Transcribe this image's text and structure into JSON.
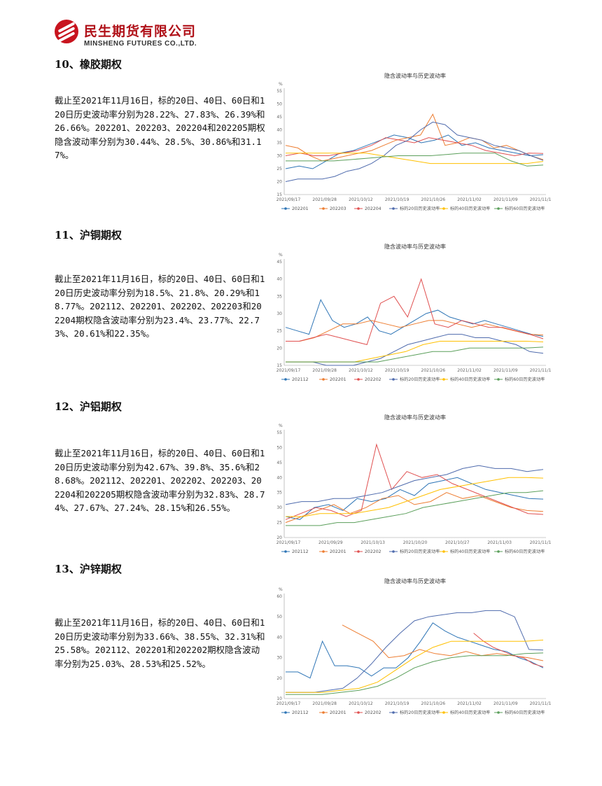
{
  "header": {
    "company_cn": "民生期货有限公司",
    "company_en": "MINSHENG FUTURES CO.,LTD."
  },
  "sections": [
    {
      "title": "10、橡胶期权",
      "text": "截止至2021年11月16日，标的20日、40日、60日和120日历史波动率分别为28.22%、27.83%、26.39%和26.66%。202201、202203、202204和202205期权隐含波动率分别为30.44%、28.5%、30.86%和31.17%。",
      "chart": {
        "title": "隐含波动率与历史波动率",
        "yunit": "%",
        "ylim": [
          15,
          55
        ],
        "yticks": [
          "55",
          "50",
          "45",
          "40",
          "35",
          "30",
          "25",
          "20",
          "15"
        ],
        "xticks": [
          "2021/09/17",
          "2021/09/28",
          "2021/10/12",
          "2021/10/19",
          "2021/10/26",
          "2021/11/02",
          "2021/11/09",
          "2021/11/16"
        ],
        "legend": [
          "202201",
          "202203",
          "202204",
          "标的20日历史波动率",
          "标的40日历史波动率",
          "标的60日历史波动率"
        ],
        "colors": [
          "#2e75b6",
          "#ed7d31",
          "#e05050",
          "#4f6bad",
          "#ffc000",
          "#5b9f5b"
        ]
      }
    },
    {
      "title": "11、沪铜期权",
      "text": "截止至2021年11月16日，标的20日、40日、60日和120日历史波动率分别为18.5%、21.8%、20.29%和18.77%。202112、202201、202202、202203和202204期权隐含波动率分别为23.4%、23.77%、22.73%、20.61%和22.35%。",
      "chart": {
        "title": "隐含波动率与历史波动率",
        "yunit": "%",
        "ylim": [
          15,
          45
        ],
        "yticks": [
          "45",
          "40",
          "35",
          "30",
          "25",
          "20",
          "15"
        ],
        "xticks": [
          "2021/09/17",
          "2021/09/28",
          "2021/10/12",
          "2021/10/19",
          "2021/10/26",
          "2021/11/02",
          "2021/11/09",
          "2021/11/16"
        ],
        "legend": [
          "202112",
          "202201",
          "202202",
          "标的20日历史波动率",
          "标的40日历史波动率",
          "标的60日历史波动率"
        ],
        "colors": [
          "#2e75b6",
          "#ed7d31",
          "#e05050",
          "#4f6bad",
          "#ffc000",
          "#5b9f5b"
        ]
      }
    },
    {
      "title": "12、沪铝期权",
      "text": "截止至2021年11月16日，标的20日、40日、60日和120日历史波动率分别为42.67%、39.8%、35.6%和28.68%。202112、202201、202202、202203、202204和202205期权隐含波动率分别为32.83%、28.74%、27.67%、27.24%、28.15%和26.55%。",
      "chart": {
        "title": "隐含波动率与历史波动率",
        "yunit": "%",
        "ylim": [
          20,
          55
        ],
        "yticks": [
          "55",
          "50",
          "45",
          "40",
          "35",
          "30",
          "25",
          "20"
        ],
        "xticks": [
          "2021/09/17",
          "2021/09/29",
          "2021/10/13",
          "2021/10/20",
          "2021/10/27",
          "2021/11/03",
          "2021/11/10"
        ],
        "legend": [
          "202112",
          "202201",
          "202202",
          "标的20日历史波动率",
          "标的40日历史波动率",
          "标的60日历史波动率"
        ],
        "colors": [
          "#2e75b6",
          "#ed7d31",
          "#e05050",
          "#4f6bad",
          "#ffc000",
          "#5b9f5b"
        ]
      }
    },
    {
      "title": "13、沪锌期权",
      "text": "截止至2021年11月16日，标的20日、40日、60日和120日历史波动率分别为33.66%、38.55%、32.31%和25.58%。202112、202201和202202期权隐含波动率分别为25.03%、28.53%和25.52%。",
      "chart": {
        "title": "隐含波动率与历史波动率",
        "yunit": "%",
        "ylim": [
          10,
          60
        ],
        "yticks": [
          "60",
          "50",
          "40",
          "30",
          "20",
          "10"
        ],
        "xticks": [
          "2021/09/17",
          "2021/09/28",
          "2021/10/12",
          "2021/10/19",
          "2021/10/26",
          "2021/11/02",
          "2021/11/09",
          "2021/11/16"
        ],
        "legend": [
          "202112",
          "202201",
          "202202",
          "标的20日历史波动率",
          "标的40日历史波动率",
          "标的60日历史波动率"
        ],
        "colors": [
          "#2e75b6",
          "#ed7d31",
          "#e05050",
          "#4f6bad",
          "#ffc000",
          "#5b9f5b"
        ]
      }
    }
  ],
  "chart_data": [
    {
      "type": "line",
      "title": "隐含波动率与历史波动率",
      "ylabel": "%",
      "ylim": [
        15,
        55
      ],
      "x_ticks": [
        "2021/09/17",
        "2021/09/28",
        "2021/10/12",
        "2021/10/19",
        "2021/10/26",
        "2021/11/02",
        "2021/11/09",
        "2021/11/16"
      ],
      "series": [
        {
          "name": "202201",
          "values": [
            25,
            26,
            25,
            28,
            31,
            32,
            34,
            36,
            38,
            37,
            35,
            36,
            38,
            34,
            35,
            33,
            32,
            31,
            30,
            30.4
          ]
        },
        {
          "name": "202203",
          "values": [
            34,
            33,
            30,
            28,
            29,
            30,
            31,
            32,
            34,
            36,
            37,
            38,
            46,
            34,
            35,
            37,
            36,
            33,
            34,
            32,
            30,
            28.5
          ]
        },
        {
          "name": "202204",
          "values": [
            30,
            31,
            30,
            30,
            31,
            32,
            34,
            37,
            36,
            35,
            37,
            36,
            35,
            34,
            32,
            31,
            30,
            31,
            30.9
          ]
        },
        {
          "name": "标的20日历史波动率",
          "values": [
            20,
            21,
            21,
            21,
            22,
            24,
            25,
            27,
            30,
            34,
            36,
            40,
            43,
            42,
            38,
            37,
            36,
            34,
            33,
            32,
            30,
            28.2
          ]
        },
        {
          "name": "标的40日历史波动率",
          "values": [
            31,
            31,
            31,
            31,
            31,
            31,
            30,
            29,
            28,
            27,
            27,
            27,
            27,
            27,
            27,
            27,
            27.8
          ]
        },
        {
          "name": "标的60日历史波动率",
          "values": [
            28,
            28,
            28,
            28,
            28.5,
            29,
            29.5,
            30,
            30,
            30,
            30.5,
            31,
            31,
            31,
            28,
            26,
            26.4
          ]
        }
      ]
    },
    {
      "type": "line",
      "title": "隐含波动率与历史波动率",
      "ylabel": "%",
      "ylim": [
        15,
        45
      ],
      "x_ticks": [
        "2021/09/17",
        "2021/09/28",
        "2021/10/12",
        "2021/10/19",
        "2021/10/26",
        "2021/11/02",
        "2021/11/09",
        "2021/11/16"
      ],
      "series": [
        {
          "name": "202112",
          "values": [
            26,
            25,
            24,
            34,
            28,
            26,
            27,
            29,
            25,
            24,
            26,
            28,
            30,
            31,
            29,
            28,
            27,
            28,
            27,
            26,
            25,
            24,
            23.4
          ]
        },
        {
          "name": "202201",
          "values": [
            22,
            22,
            23,
            25,
            27,
            27,
            28,
            27,
            26,
            27,
            28,
            28,
            27,
            26,
            27,
            26,
            25,
            24,
            23.8
          ]
        },
        {
          "name": "202202",
          "values": [
            22,
            22,
            23,
            24,
            23,
            22,
            21,
            33,
            35,
            29,
            40,
            27,
            26,
            28,
            27,
            26,
            26,
            25,
            24,
            22.7
          ]
        },
        {
          "name": "标的20日历史波动率",
          "values": [
            16,
            16,
            16,
            15,
            15,
            15,
            16,
            17,
            19,
            21,
            22,
            23,
            24,
            24,
            23,
            23,
            22,
            21,
            19,
            18.5
          ]
        },
        {
          "name": "标的40日历史波动率",
          "values": [
            16,
            16,
            16,
            16,
            16,
            17,
            18,
            19,
            21,
            22,
            22,
            22,
            22,
            22,
            22,
            21.8
          ]
        },
        {
          "name": "标的60日历史波动率",
          "values": [
            16,
            16,
            16,
            16,
            16,
            16,
            17,
            18,
            19,
            19,
            20,
            20,
            20,
            20,
            20.3
          ]
        }
      ]
    },
    {
      "type": "line",
      "title": "隐含波动率与历史波动率",
      "ylabel": "%",
      "ylim": [
        20,
        55
      ],
      "x_ticks": [
        "2021/09/17",
        "2021/09/29",
        "2021/10/13",
        "2021/10/20",
        "2021/10/27",
        "2021/11/03",
        "2021/11/10"
      ],
      "series": [
        {
          "name": "202112",
          "values": [
            27,
            26,
            30,
            31,
            29,
            33,
            32,
            33,
            36,
            34,
            38,
            39,
            40,
            38,
            36,
            35,
            34,
            33,
            32.8
          ]
        },
        {
          "name": "202201",
          "values": [
            25,
            27,
            29,
            31,
            28,
            30,
            33,
            34,
            31,
            32,
            35,
            33,
            34,
            32,
            30,
            29,
            28.7
          ]
        },
        {
          "name": "202202",
          "values": [
            26,
            28,
            30,
            29,
            27,
            29,
            51,
            36,
            42,
            40,
            41,
            38,
            36,
            34,
            32,
            30,
            28,
            27.7
          ]
        },
        {
          "name": "标的20日历史波动率",
          "values": [
            31,
            32,
            32,
            33,
            33,
            34,
            35,
            37,
            39,
            40,
            41,
            43,
            44,
            43,
            43,
            42,
            42.7
          ]
        },
        {
          "name": "标的40日历史波动率",
          "values": [
            27,
            27,
            28,
            28,
            28,
            29,
            30,
            32,
            34,
            36,
            37,
            38,
            39,
            40,
            40,
            39.8
          ]
        },
        {
          "name": "标的60日历史波动率",
          "values": [
            24,
            24,
            24,
            25,
            25,
            26,
            27,
            28,
            30,
            31,
            32,
            33,
            34,
            35,
            35,
            35.6
          ]
        }
      ]
    },
    {
      "type": "line",
      "title": "隐含波动率与历史波动率",
      "ylabel": "%",
      "ylim": [
        10,
        60
      ],
      "x_ticks": [
        "2021/09/17",
        "2021/09/28",
        "2021/10/12",
        "2021/10/19",
        "2021/10/26",
        "2021/11/02",
        "2021/11/09",
        "2021/11/16"
      ],
      "series": [
        {
          "name": "202112",
          "values": [
            23,
            23,
            20,
            38,
            26,
            26,
            25,
            21,
            25,
            25,
            30,
            38,
            47,
            43,
            40,
            38,
            36,
            34,
            33,
            30,
            28,
            25
          ]
        },
        {
          "name": "202201",
          "values": [
            46,
            42,
            38,
            30,
            31,
            34,
            32,
            31,
            33,
            31,
            32,
            31,
            30,
            28.5
          ]
        },
        {
          "name": "202202",
          "values": [
            42,
            38,
            35,
            33,
            31,
            30,
            27,
            25.5
          ]
        },
        {
          "name": "标的20日历史波动率",
          "values": [
            13,
            13,
            13,
            14,
            15,
            20,
            27,
            35,
            42,
            48,
            50,
            51,
            52,
            52,
            53,
            53,
            50,
            34,
            33.7
          ]
        },
        {
          "name": "标的40日历史波动率",
          "values": [
            13,
            13,
            13,
            14,
            15,
            18,
            24,
            30,
            35,
            38,
            38,
            38,
            38,
            38,
            38.6
          ]
        },
        {
          "name": "标的60日历史波动率",
          "values": [
            12,
            12,
            12,
            13,
            14,
            16,
            20,
            25,
            28,
            30,
            31,
            31,
            31,
            32,
            32.3
          ]
        }
      ]
    }
  ]
}
